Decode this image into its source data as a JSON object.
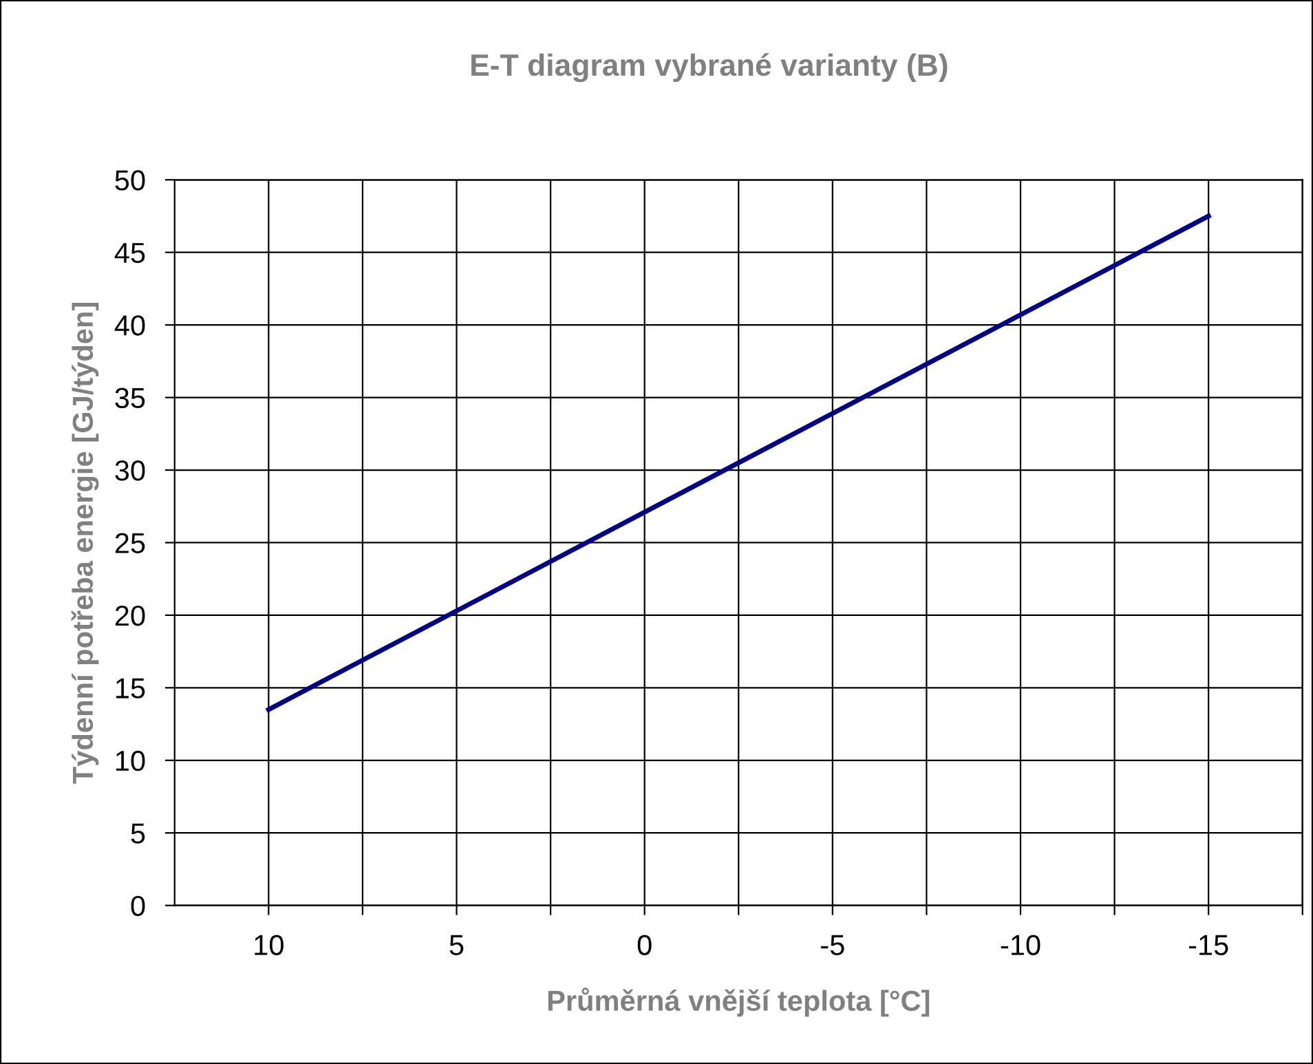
{
  "chart_data": {
    "type": "line",
    "title": "E-T diagram vybrané varianty (B)",
    "xlabel": "Průměrná vnější teplota [°C]",
    "ylabel": "Týdenní potřeba energie [GJ/týden]",
    "x": [
      10,
      -15
    ],
    "series": [
      {
        "color": "#000080",
        "values": [
          13.5,
          47.5
        ]
      }
    ],
    "xlim": [
      12.5,
      -17.5
    ],
    "xticks": [
      10,
      {
        "value": 7.5,
        "label": null
      },
      5,
      {
        "value": 2.5,
        "label": null
      },
      0,
      {
        "value": -2.5,
        "label": null
      },
      -5,
      {
        "value": -7.5,
        "label": null
      },
      -10,
      {
        "value": -12.5,
        "label": null
      },
      -15,
      {
        "value": -17.5,
        "label": null
      }
    ],
    "ylim": [
      0,
      50
    ],
    "yticks": [
      0,
      5,
      10,
      15,
      20,
      25,
      30,
      35,
      40,
      45,
      50
    ],
    "grid": true,
    "legend": false,
    "marker": "none",
    "line_style": "solid"
  }
}
